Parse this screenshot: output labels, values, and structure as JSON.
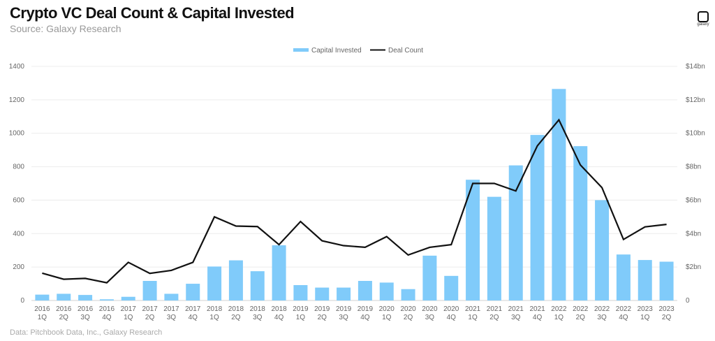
{
  "title": "Crypto VC Deal Count & Capital Invested",
  "subtitle": "Source: Galaxy Research",
  "footnote": "Data: Pitchbook Data, Inc., Galaxy Research",
  "logo_text": "galaxy",
  "chart_data": {
    "type": "bar+line",
    "categories": [
      [
        "2016",
        "1Q"
      ],
      [
        "2016",
        "2Q"
      ],
      [
        "2016",
        "3Q"
      ],
      [
        "2016",
        "4Q"
      ],
      [
        "2017",
        "1Q"
      ],
      [
        "2017",
        "2Q"
      ],
      [
        "2017",
        "3Q"
      ],
      [
        "2017",
        "4Q"
      ],
      [
        "2018",
        "1Q"
      ],
      [
        "2018",
        "2Q"
      ],
      [
        "2018",
        "3Q"
      ],
      [
        "2018",
        "4Q"
      ],
      [
        "2019",
        "1Q"
      ],
      [
        "2019",
        "2Q"
      ],
      [
        "2019",
        "3Q"
      ],
      [
        "2019",
        "4Q"
      ],
      [
        "2020",
        "1Q"
      ],
      [
        "2020",
        "2Q"
      ],
      [
        "2020",
        "3Q"
      ],
      [
        "2020",
        "4Q"
      ],
      [
        "2021",
        "1Q"
      ],
      [
        "2021",
        "2Q"
      ],
      [
        "2021",
        "3Q"
      ],
      [
        "2021",
        "4Q"
      ],
      [
        "2022",
        "1Q"
      ],
      [
        "2022",
        "2Q"
      ],
      [
        "2022",
        "3Q"
      ],
      [
        "2022",
        "4Q"
      ],
      [
        "2023",
        "1Q"
      ],
      [
        "2023",
        "2Q"
      ]
    ],
    "series": [
      {
        "name": "Capital Invested",
        "type": "bar",
        "axis": "right",
        "unit": "$bn",
        "color": "#80cbfa",
        "values": [
          0.35,
          0.4,
          0.33,
          0.07,
          0.22,
          1.17,
          0.4,
          1.0,
          2.03,
          2.4,
          1.75,
          3.3,
          0.92,
          0.77,
          0.77,
          1.17,
          1.07,
          0.68,
          2.68,
          1.47,
          7.22,
          6.2,
          8.08,
          9.9,
          12.65,
          9.23,
          6.0,
          2.75,
          2.42,
          2.32
        ]
      },
      {
        "name": "Deal Count",
        "type": "line",
        "axis": "left",
        "color": "#111111",
        "values": [
          163,
          127,
          132,
          106,
          228,
          162,
          180,
          228,
          500,
          445,
          442,
          334,
          472,
          357,
          328,
          318,
          382,
          272,
          318,
          334,
          700,
          700,
          655,
          925,
          1080,
          810,
          675,
          365,
          440,
          455
        ]
      }
    ],
    "left_axis": {
      "range": [
        0,
        1400
      ],
      "ticks": [
        "0",
        "200",
        "400",
        "600",
        "800",
        "1000",
        "1200",
        "1400"
      ]
    },
    "right_axis": {
      "range": [
        0,
        14
      ],
      "ticks": [
        "0",
        "$2bn",
        "$4bn",
        "$6bn",
        "$8bn",
        "$10bn",
        "$12bn",
        "$14bn"
      ]
    },
    "grid": true,
    "legend": "top-center"
  }
}
